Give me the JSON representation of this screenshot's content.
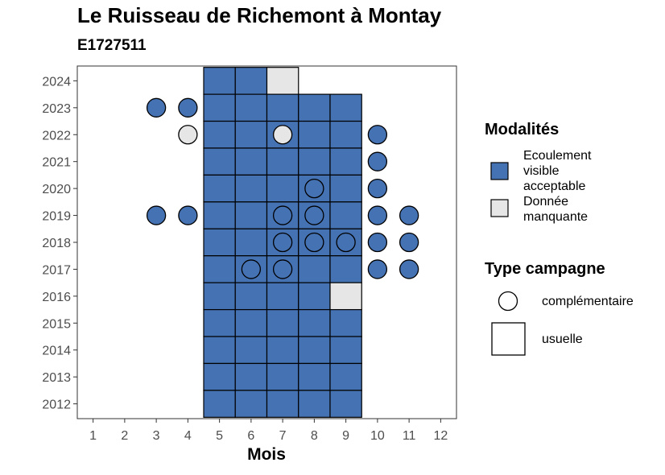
{
  "chart_data": {
    "type": "heatmap",
    "title": "Le Ruisseau de Richemont à Montay",
    "subtitle": "E1727511",
    "xlabel": "Mois",
    "ylabel": "",
    "x_ticks": [
      "1",
      "2",
      "3",
      "4",
      "5",
      "6",
      "7",
      "8",
      "9",
      "10",
      "11",
      "12"
    ],
    "y_ticks": [
      "2024",
      "2023",
      "2022",
      "2021",
      "2020",
      "2019",
      "2018",
      "2017",
      "2016",
      "2015",
      "2014",
      "2013",
      "2012"
    ],
    "xlim": [
      0.5,
      12.5
    ],
    "ylim": [
      2011.45,
      2024.55
    ],
    "grid": false,
    "legend_position": "right",
    "colors": {
      "acceptable": "#4572b3",
      "missing": "#e6e6e6"
    },
    "legends": {
      "modalites": {
        "title": "Modalités",
        "items": [
          {
            "key": "acceptable",
            "label": "Ecoulement visible acceptable"
          },
          {
            "key": "missing",
            "label": "Donnée manquante"
          }
        ]
      },
      "type_campagne": {
        "title": "Type campagne",
        "items": [
          {
            "shape": "circle",
            "label": "complémentaire"
          },
          {
            "shape": "square",
            "label": "usuelle"
          }
        ]
      }
    },
    "usuelle": [
      {
        "year": 2024,
        "month": 5,
        "status": "acceptable"
      },
      {
        "year": 2024,
        "month": 6,
        "status": "acceptable"
      },
      {
        "year": 2024,
        "month": 7,
        "status": "missing"
      },
      {
        "year": 2023,
        "month": 5,
        "status": "acceptable"
      },
      {
        "year": 2023,
        "month": 6,
        "status": "acceptable"
      },
      {
        "year": 2023,
        "month": 7,
        "status": "acceptable"
      },
      {
        "year": 2023,
        "month": 8,
        "status": "acceptable"
      },
      {
        "year": 2023,
        "month": 9,
        "status": "acceptable"
      },
      {
        "year": 2022,
        "month": 5,
        "status": "acceptable"
      },
      {
        "year": 2022,
        "month": 6,
        "status": "acceptable"
      },
      {
        "year": 2022,
        "month": 7,
        "status": "acceptable"
      },
      {
        "year": 2022,
        "month": 8,
        "status": "acceptable"
      },
      {
        "year": 2022,
        "month": 9,
        "status": "acceptable"
      },
      {
        "year": 2021,
        "month": 5,
        "status": "acceptable"
      },
      {
        "year": 2021,
        "month": 6,
        "status": "acceptable"
      },
      {
        "year": 2021,
        "month": 7,
        "status": "acceptable"
      },
      {
        "year": 2021,
        "month": 8,
        "status": "acceptable"
      },
      {
        "year": 2021,
        "month": 9,
        "status": "acceptable"
      },
      {
        "year": 2020,
        "month": 5,
        "status": "acceptable"
      },
      {
        "year": 2020,
        "month": 6,
        "status": "acceptable"
      },
      {
        "year": 2020,
        "month": 7,
        "status": "acceptable"
      },
      {
        "year": 2020,
        "month": 8,
        "status": "acceptable"
      },
      {
        "year": 2020,
        "month": 9,
        "status": "acceptable"
      },
      {
        "year": 2019,
        "month": 5,
        "status": "acceptable"
      },
      {
        "year": 2019,
        "month": 6,
        "status": "acceptable"
      },
      {
        "year": 2019,
        "month": 7,
        "status": "acceptable"
      },
      {
        "year": 2019,
        "month": 8,
        "status": "acceptable"
      },
      {
        "year": 2019,
        "month": 9,
        "status": "acceptable"
      },
      {
        "year": 2018,
        "month": 5,
        "status": "acceptable"
      },
      {
        "year": 2018,
        "month": 6,
        "status": "acceptable"
      },
      {
        "year": 2018,
        "month": 7,
        "status": "acceptable"
      },
      {
        "year": 2018,
        "month": 8,
        "status": "acceptable"
      },
      {
        "year": 2018,
        "month": 9,
        "status": "acceptable"
      },
      {
        "year": 2017,
        "month": 5,
        "status": "acceptable"
      },
      {
        "year": 2017,
        "month": 6,
        "status": "acceptable"
      },
      {
        "year": 2017,
        "month": 7,
        "status": "acceptable"
      },
      {
        "year": 2017,
        "month": 8,
        "status": "acceptable"
      },
      {
        "year": 2017,
        "month": 9,
        "status": "acceptable"
      },
      {
        "year": 2016,
        "month": 5,
        "status": "acceptable"
      },
      {
        "year": 2016,
        "month": 6,
        "status": "acceptable"
      },
      {
        "year": 2016,
        "month": 7,
        "status": "acceptable"
      },
      {
        "year": 2016,
        "month": 8,
        "status": "acceptable"
      },
      {
        "year": 2016,
        "month": 9,
        "status": "missing"
      },
      {
        "year": 2015,
        "month": 5,
        "status": "acceptable"
      },
      {
        "year": 2015,
        "month": 6,
        "status": "acceptable"
      },
      {
        "year": 2015,
        "month": 7,
        "status": "acceptable"
      },
      {
        "year": 2015,
        "month": 8,
        "status": "acceptable"
      },
      {
        "year": 2015,
        "month": 9,
        "status": "acceptable"
      },
      {
        "year": 2014,
        "month": 5,
        "status": "acceptable"
      },
      {
        "year": 2014,
        "month": 6,
        "status": "acceptable"
      },
      {
        "year": 2014,
        "month": 7,
        "status": "acceptable"
      },
      {
        "year": 2014,
        "month": 8,
        "status": "acceptable"
      },
      {
        "year": 2014,
        "month": 9,
        "status": "acceptable"
      },
      {
        "year": 2013,
        "month": 5,
        "status": "acceptable"
      },
      {
        "year": 2013,
        "month": 6,
        "status": "acceptable"
      },
      {
        "year": 2013,
        "month": 7,
        "status": "acceptable"
      },
      {
        "year": 2013,
        "month": 8,
        "status": "acceptable"
      },
      {
        "year": 2013,
        "month": 9,
        "status": "acceptable"
      },
      {
        "year": 2012,
        "month": 5,
        "status": "acceptable"
      },
      {
        "year": 2012,
        "month": 6,
        "status": "acceptable"
      },
      {
        "year": 2012,
        "month": 7,
        "status": "acceptable"
      },
      {
        "year": 2012,
        "month": 8,
        "status": "acceptable"
      },
      {
        "year": 2012,
        "month": 9,
        "status": "acceptable"
      }
    ],
    "complementaire": [
      {
        "year": 2023,
        "month": 3,
        "status": "acceptable"
      },
      {
        "year": 2023,
        "month": 4,
        "status": "acceptable"
      },
      {
        "year": 2022,
        "month": 4,
        "status": "missing"
      },
      {
        "year": 2022,
        "month": 7,
        "status": "missing"
      },
      {
        "year": 2022,
        "month": 10,
        "status": "acceptable"
      },
      {
        "year": 2021,
        "month": 10,
        "status": "acceptable"
      },
      {
        "year": 2020,
        "month": 8,
        "status": "acceptable"
      },
      {
        "year": 2020,
        "month": 10,
        "status": "acceptable"
      },
      {
        "year": 2019,
        "month": 3,
        "status": "acceptable"
      },
      {
        "year": 2019,
        "month": 4,
        "status": "acceptable"
      },
      {
        "year": 2019,
        "month": 7,
        "status": "acceptable"
      },
      {
        "year": 2019,
        "month": 8,
        "status": "acceptable"
      },
      {
        "year": 2019,
        "month": 10,
        "status": "acceptable"
      },
      {
        "year": 2019,
        "month": 11,
        "status": "acceptable"
      },
      {
        "year": 2018,
        "month": 7,
        "status": "acceptable"
      },
      {
        "year": 2018,
        "month": 8,
        "status": "acceptable"
      },
      {
        "year": 2018,
        "month": 9,
        "status": "acceptable"
      },
      {
        "year": 2018,
        "month": 10,
        "status": "acceptable"
      },
      {
        "year": 2018,
        "month": 11,
        "status": "acceptable"
      },
      {
        "year": 2017,
        "month": 6,
        "status": "acceptable"
      },
      {
        "year": 2017,
        "month": 7,
        "status": "acceptable"
      },
      {
        "year": 2017,
        "month": 10,
        "status": "acceptable"
      },
      {
        "year": 2017,
        "month": 11,
        "status": "acceptable"
      }
    ]
  }
}
